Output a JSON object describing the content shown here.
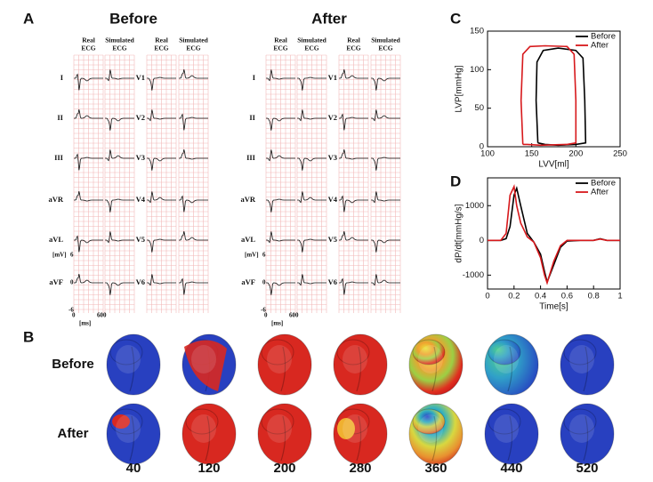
{
  "panel_labels": {
    "a": "A",
    "b": "B",
    "c": "C",
    "d": "D"
  },
  "ecg": {
    "before_title": "Before",
    "after_title": "After",
    "column_headers": [
      {
        "top": "Real",
        "bottom": "ECG"
      },
      {
        "top": "Simulated",
        "bottom": "ECG"
      },
      {
        "top": "Real",
        "bottom": "ECG"
      },
      {
        "top": "Simulated",
        "bottom": "ECG"
      }
    ],
    "limb_leads": [
      "I",
      "II",
      "III",
      "aVR",
      "aVL",
      "aVF"
    ],
    "chest_leads": [
      "V1",
      "V2",
      "V3",
      "V4",
      "V5",
      "V6"
    ],
    "scale": {
      "y_unit": "[mV]",
      "y_max": 6,
      "y_min": -6,
      "y_zero": 0,
      "x_min": 0,
      "x_max": 600,
      "x_unit": "[ms]"
    }
  },
  "heart_maps": {
    "rows": [
      "Before",
      "After"
    ],
    "times": [
      40,
      120,
      200,
      280,
      360,
      440,
      520
    ]
  },
  "chart_data": [
    {
      "type": "line",
      "x_label": "LVV[ml]",
      "y_label": "LVP[mmHg]",
      "xlim": [
        100,
        250
      ],
      "xticks": [
        100,
        150,
        200,
        250
      ],
      "ylim": [
        0,
        150
      ],
      "yticks": [
        0,
        50,
        100,
        150
      ],
      "legend": "upper right",
      "series": [
        {
          "name": "Before",
          "color": "#000000",
          "x": [
            157,
            155,
            156,
            163,
            180,
            200,
            208,
            210,
            211,
            200,
            180,
            165,
            157
          ],
          "values": [
            5,
            60,
            110,
            125,
            128,
            125,
            115,
            60,
            5,
            3,
            2,
            3,
            5
          ]
        },
        {
          "name": "After",
          "color": "#d7191c",
          "x": [
            140,
            138,
            140,
            148,
            165,
            190,
            198,
            200,
            200,
            190,
            160,
            145,
            140
          ],
          "values": [
            3,
            60,
            120,
            130,
            131,
            130,
            120,
            60,
            5,
            3,
            2,
            3,
            3
          ]
        }
      ]
    },
    {
      "type": "line",
      "x_label": "Time[s]",
      "y_label": "dP/dt[mmHg/s]",
      "xlim": [
        0,
        1
      ],
      "xticks": [
        0,
        0.2,
        0.4,
        0.6,
        0.8,
        1
      ],
      "ylim": [
        -1400,
        1800
      ],
      "yticks": [
        -1000,
        0,
        1000
      ],
      "legend": "upper right",
      "x": [
        0,
        0.1,
        0.14,
        0.17,
        0.2,
        0.22,
        0.25,
        0.3,
        0.35,
        0.4,
        0.43,
        0.45,
        0.5,
        0.55,
        0.6,
        0.7,
        0.8,
        0.85,
        0.9,
        1
      ],
      "series": [
        {
          "name": "Before",
          "color": "#000000",
          "values": [
            0,
            0,
            50,
            400,
            1300,
            1500,
            1000,
            200,
            -50,
            -400,
            -900,
            -1200,
            -700,
            -200,
            -20,
            0,
            0,
            50,
            0,
            0
          ]
        },
        {
          "name": "After",
          "color": "#d7191c",
          "values": [
            0,
            0,
            200,
            1300,
            1550,
            1000,
            500,
            100,
            -50,
            -500,
            -1000,
            -1220,
            -600,
            -150,
            0,
            0,
            0,
            40,
            0,
            0
          ]
        }
      ]
    }
  ]
}
